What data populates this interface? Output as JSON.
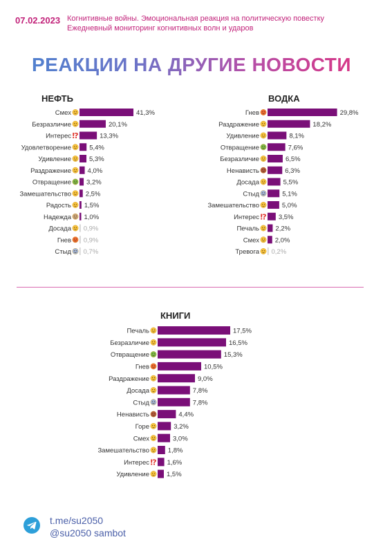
{
  "header": {
    "date": "07.02.2023",
    "subtitle_line1": "Когнитивные войны. Эмоциональная реакция на политическую повестку",
    "subtitle_line2": "Ежедневный мониторинг когнитивных волн и ударов"
  },
  "headline": "РЕАКЦИИ НА ДРУГИЕ НОВОСТИ",
  "colors": {
    "bar": "#7a0f78",
    "bar_faint": "#cfcfcf",
    "accent": "#c2227a",
    "link": "#4a5fa8"
  },
  "chart_data": [
    {
      "type": "bar",
      "title": "НЕФТЬ",
      "categories": [
        "Смех",
        "Безразличие",
        "Интерес",
        "Удовлетворение",
        "Удивление",
        "Раздражение",
        "Отвращение",
        "Замешательство",
        "Радость",
        "Надежда",
        "Досада",
        "Гнев",
        "Стыд"
      ],
      "values": [
        41.3,
        20.1,
        13.3,
        5.4,
        5.3,
        4.0,
        3.2,
        2.5,
        1.5,
        1.0,
        0.9,
        0.9,
        0.7
      ],
      "labels": [
        "41,3%",
        "20,1%",
        "13,3%",
        "5,4%",
        "5,3%",
        "4,0%",
        "3,2%",
        "2,5%",
        "1,5%",
        "1,0%",
        "0,9%",
        "0,9%",
        "0,7%"
      ],
      "icons": [
        "laugh-emoji",
        "neutral-emoji",
        "exclamation-question-icon",
        "smile-emoji",
        "surprised-emoji",
        "annoyed-emoji",
        "nauseated-emoji",
        "confused-emoji",
        "joy-emoji",
        "praying-hands-emoji",
        "disappointed-emoji",
        "angry-emoji",
        "ashamed-emoji"
      ],
      "faint_from_value": 0.9,
      "xlim": [
        0,
        45
      ]
    },
    {
      "type": "bar",
      "title": "ВОДКА",
      "categories": [
        "Гнев",
        "Раздражение",
        "Удивление",
        "Отвращение",
        "Безразличие",
        "Ненависть",
        "Досада",
        "Стыд",
        "Замешательство",
        "Интерес",
        "Печаль",
        "Смех",
        "Тревога"
      ],
      "values": [
        29.8,
        18.2,
        8.1,
        7.6,
        6.5,
        6.3,
        5.5,
        5.1,
        5.0,
        3.5,
        2.2,
        2.0,
        0.2
      ],
      "labels": [
        "29,8%",
        "18,2%",
        "8,1%",
        "7,6%",
        "6,5%",
        "6,3%",
        "5,5%",
        "5,1%",
        "5,0%",
        "3,5%",
        "2,2%",
        "2,0%",
        "0,2%"
      ],
      "icons": [
        "angry-emoji",
        "annoyed-emoji",
        "surprised-emoji",
        "nauseated-emoji",
        "neutral-emoji",
        "rage-emoji",
        "disappointed-emoji",
        "ashamed-emoji",
        "confused-emoji",
        "exclamation-question-icon",
        "sad-emoji",
        "laugh-emoji",
        "anxious-emoji"
      ],
      "faint_from_value": 0.2,
      "xlim": [
        0,
        32
      ]
    },
    {
      "type": "bar",
      "title": "КНИГИ",
      "categories": [
        "Печаль",
        "Безразличие",
        "Отвращение",
        "Гнев",
        "Раздражение",
        "Досада",
        "Стыд",
        "Ненависть",
        "Горе",
        "Смех",
        "Замешательство",
        "Интерес",
        "Удивление"
      ],
      "values": [
        17.5,
        16.5,
        15.3,
        10.5,
        9.0,
        7.8,
        7.8,
        4.4,
        3.2,
        3.0,
        1.8,
        1.6,
        1.5
      ],
      "labels": [
        "17,5%",
        "16,5%",
        "15,3%",
        "10,5%",
        "9,0%",
        "7,8%",
        "7,8%",
        "4,4%",
        "3,2%",
        "3,0%",
        "1,8%",
        "1,6%",
        "1,5%"
      ],
      "icons": [
        "sad-emoji",
        "neutral-emoji",
        "nauseated-emoji",
        "angry-emoji",
        "annoyed-emoji",
        "disappointed-emoji",
        "ashamed-emoji",
        "rage-emoji",
        "grief-emoji",
        "laugh-emoji",
        "confused-emoji",
        "exclamation-question-icon",
        "surprised-emoji"
      ],
      "faint_from_value": 0,
      "xlim": [
        0,
        17.5
      ]
    }
  ],
  "footer": {
    "link": "t.me/su2050",
    "handle": "@su2050 sambot"
  }
}
